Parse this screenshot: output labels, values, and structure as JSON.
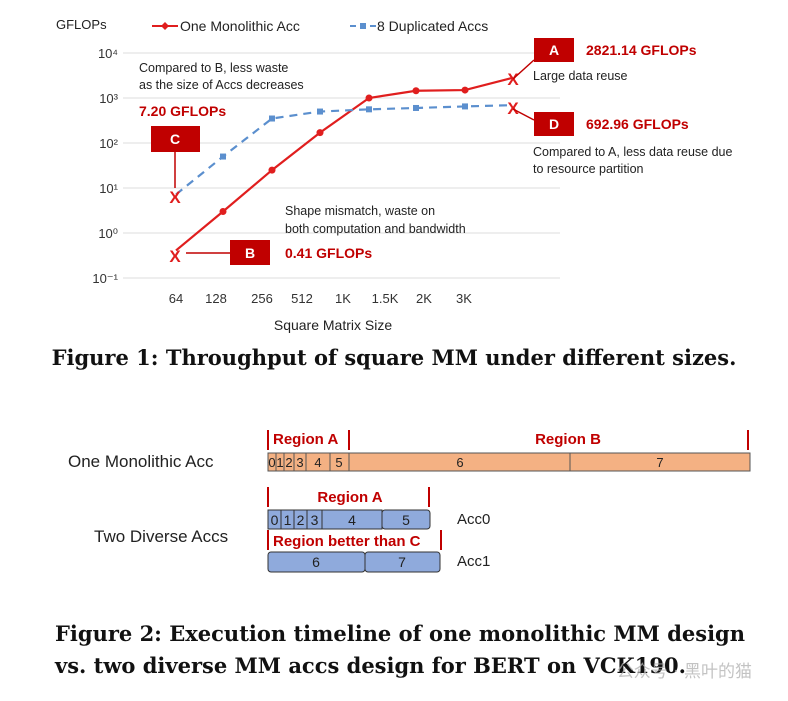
{
  "figure1": {
    "caption": "Figure 1: Throughput of square MM under different sizes.",
    "chart_data": {
      "type": "line",
      "ylabel": "GFLOPs",
      "xlabel": "Square Matrix Size",
      "y_scale": "log",
      "ylim": [
        0.1,
        10000
      ],
      "y_ticks": [
        "10⁻¹",
        "10⁰",
        "10¹",
        "10²",
        "10³",
        "10⁴"
      ],
      "categories": [
        "64",
        "128",
        "256",
        "512",
        "1K",
        "1.5K",
        "2K",
        "3K"
      ],
      "x_tick_labels": [
        "64",
        "128",
        "256",
        "512",
        "1K",
        "1.5K",
        "2K",
        "3K"
      ],
      "series": [
        {
          "name": "One Monolithic Acc",
          "color": "#e01e1e",
          "values": [
            0.41,
            3,
            25,
            170,
            1000,
            1450,
            1500,
            2821.14
          ]
        },
        {
          "name": "8 Duplicated Accs",
          "color": "#5b8fce",
          "values": [
            7.2,
            50,
            350,
            500,
            560,
            600,
            650,
            692.96
          ]
        }
      ],
      "legend": [
        "One Monolithic Acc",
        "8 Duplicated Accs"
      ],
      "grid": true,
      "legend_position": "top"
    },
    "annotations": {
      "a": {
        "badge": "A",
        "value": "2821.14 GFLOPs",
        "note": "Large data reuse"
      },
      "b": {
        "badge": "B",
        "value": "0.41 GFLOPs",
        "note1": "Shape mismatch, waste on",
        "note2": "both computation and bandwidth"
      },
      "c": {
        "badge": "C",
        "value": "7.20 GFLOPs",
        "note1": "Compared to B, less waste",
        "note2": "as the size of Accs decreases"
      },
      "d": {
        "badge": "D",
        "value": "692.96 GFLOPs",
        "note1": "Compared to A, less data reuse due",
        "note2": "to resource partition"
      }
    }
  },
  "figure2": {
    "caption_line1": "Figure 2: Execution timeline of one monolithic MM design",
    "caption_line2": "vs. two diverse MM accs design for BERT on VCK190.",
    "row1_label": "One Monolithic Acc",
    "row2_label": "Two Diverse Accs",
    "region_a": "Region A",
    "region_b": "Region B",
    "region_better": "Region better than C",
    "acc0": "Acc0",
    "acc1": "Acc1",
    "mono_blocks": [
      "0",
      "1",
      "2",
      "3",
      "4",
      "5",
      "6",
      "7"
    ],
    "acc0_blocks": [
      "0",
      "1",
      "2",
      "3",
      "4",
      "5"
    ],
    "acc1_blocks": [
      "6",
      "7"
    ],
    "colors": {
      "orange": "#f4b183",
      "blue": "#8faadc",
      "red": "#c00000"
    }
  },
  "watermark": "公众号 · 黑叶的猫"
}
